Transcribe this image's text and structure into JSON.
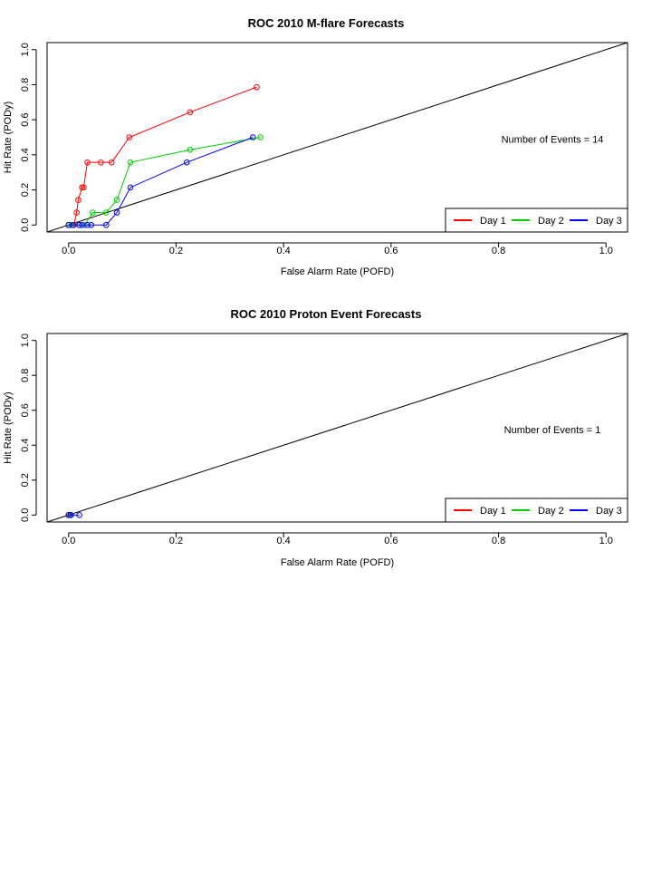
{
  "colors": {
    "day1": "#ff0000",
    "day2": "#00cc00",
    "day3": "#0000ff",
    "axis": "#000000"
  },
  "chart_data": [
    {
      "type": "line",
      "title": "ROC  2010 M-flare Forecasts",
      "xlabel": "False Alarm Rate (POFD)",
      "ylabel": "Hit Rate (PODy)",
      "xlim": [
        -0.04,
        1.04
      ],
      "ylim": [
        -0.04,
        1.04
      ],
      "xticks": [
        "0.0",
        "0.2",
        "0.4",
        "0.6",
        "0.8",
        "1.0"
      ],
      "yticks": [
        "0.0",
        "0.2",
        "0.4",
        "0.6",
        "0.8",
        "1.0"
      ],
      "annotation": "Number of Events =  14",
      "legend_position": "bottom-right",
      "reference_line": [
        [
          -0.04,
          -0.04
        ],
        [
          1.04,
          1.04
        ]
      ],
      "series": [
        {
          "name": "Day 1",
          "color": "#ff0000",
          "x": [
            0.0,
            0.005,
            0.01,
            0.015,
            0.018,
            0.025,
            0.028,
            0.035,
            0.06,
            0.08,
            0.113,
            0.226,
            0.35
          ],
          "y": [
            0.0,
            0.0,
            0.0,
            0.071,
            0.143,
            0.214,
            0.214,
            0.357,
            0.357,
            0.357,
            0.5,
            0.643,
            0.786
          ]
        },
        {
          "name": "Day 2",
          "color": "#00cc00",
          "x": [
            0.0,
            0.005,
            0.02,
            0.03,
            0.045,
            0.07,
            0.09,
            0.115,
            0.226,
            0.357
          ],
          "y": [
            0.0,
            0.0,
            0.0,
            0.0,
            0.071,
            0.071,
            0.143,
            0.357,
            0.429,
            0.5
          ]
        },
        {
          "name": "Day 3",
          "color": "#0000ff",
          "x": [
            0.0,
            0.008,
            0.02,
            0.025,
            0.035,
            0.042,
            0.07,
            0.09,
            0.115,
            0.22,
            0.343
          ],
          "y": [
            0.0,
            0.0,
            0.0,
            0.0,
            0.0,
            0.0,
            0.0,
            0.071,
            0.214,
            0.357,
            0.5
          ]
        }
      ]
    },
    {
      "type": "line",
      "title": "ROC  2010 Proton Event Forecasts",
      "xlabel": "False Alarm Rate (POFD)",
      "ylabel": "Hit Rate (PODy)",
      "xlim": [
        -0.04,
        1.04
      ],
      "ylim": [
        -0.04,
        1.04
      ],
      "xticks": [
        "0.0",
        "0.2",
        "0.4",
        "0.6",
        "0.8",
        "1.0"
      ],
      "yticks": [
        "0.0",
        "0.2",
        "0.4",
        "0.6",
        "0.8",
        "1.0"
      ],
      "annotation": "Number of Events =  1",
      "legend_position": "bottom-right",
      "reference_line": [
        [
          -0.04,
          -0.04
        ],
        [
          1.04,
          1.04
        ]
      ],
      "series": [
        {
          "name": "Day 1",
          "color": "#ff0000",
          "x": [
            0.0,
            0.003
          ],
          "y": [
            0.0,
            0.0
          ]
        },
        {
          "name": "Day 2",
          "color": "#00cc00",
          "x": [
            0.0,
            0.005
          ],
          "y": [
            0.0,
            0.0
          ]
        },
        {
          "name": "Day 3",
          "color": "#0000ff",
          "x": [
            0.0,
            0.004,
            0.02
          ],
          "y": [
            0.0,
            0.0,
            0.0
          ]
        }
      ]
    }
  ]
}
